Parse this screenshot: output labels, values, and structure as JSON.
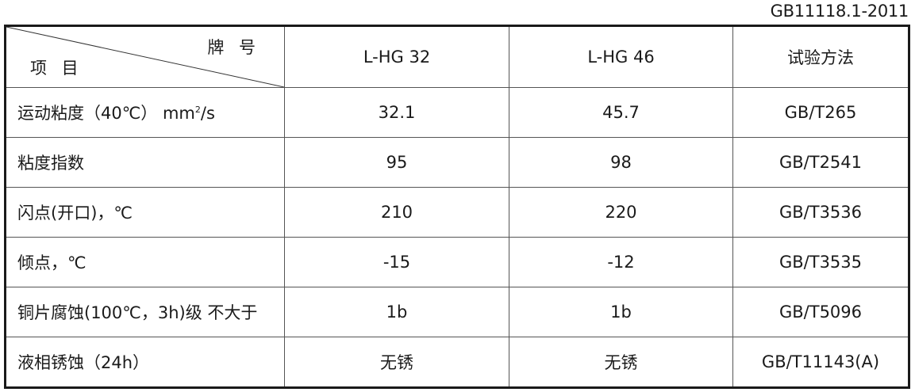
{
  "standard": "GB11118.1-2011",
  "header": {
    "corner_top": "牌 号",
    "corner_bottom": "项 目",
    "columns": [
      "L-HG 32",
      "L-HG 46",
      "试验方法"
    ]
  },
  "rows": [
    {
      "item": "运动粘度（40℃） mm",
      "item_sup": "2",
      "item_suffix": "/s",
      "hg32": "32.1",
      "hg46": "45.7",
      "method": "GB/T265"
    },
    {
      "item": "粘度指数",
      "hg32": "95",
      "hg46": "98",
      "method": "GB/T2541"
    },
    {
      "item": "闪点(开口)，℃",
      "hg32": "210",
      "hg46": "220",
      "method": "GB/T3536"
    },
    {
      "item": "倾点，℃",
      "hg32": "-15",
      "hg46": "-12",
      "method": "GB/T3535"
    },
    {
      "item": "铜片腐蚀(100℃，3h)级 不大于",
      "hg32": "1b",
      "hg46": "1b",
      "method": "GB/T5096"
    },
    {
      "item": "液相锈蚀（24h）",
      "hg32": "无锈",
      "hg46": "无锈",
      "method": "GB/T11143(A)"
    }
  ]
}
